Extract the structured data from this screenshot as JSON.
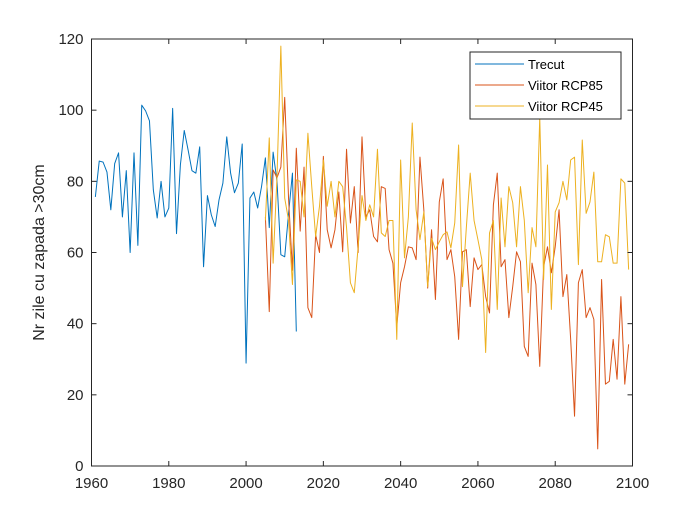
{
  "chart_data": {
    "type": "line",
    "title": "",
    "xlabel": "",
    "ylabel": "Nr zile cu zapada >30cm",
    "xlim": [
      1960,
      2100
    ],
    "ylim": [
      0,
      120
    ],
    "xticks": [
      1960,
      1980,
      2000,
      2020,
      2040,
      2060,
      2080,
      2100
    ],
    "yticks": [
      0,
      20,
      40,
      60,
      80,
      100,
      120
    ],
    "xtick_labels": [
      "1960",
      "1980",
      "2000",
      "2020",
      "2040",
      "2060",
      "2080",
      "2100"
    ],
    "ytick_labels": [
      "0",
      "20",
      "40",
      "60",
      "80",
      "100",
      "120"
    ],
    "grid": false,
    "legend_position": "top-right",
    "series": [
      {
        "name": "Trecut",
        "color": "#0072BD",
        "x_start": 1961,
        "values": [
          75.6,
          85.7,
          85.4,
          82.6,
          72,
          85,
          88,
          70,
          83,
          60,
          88,
          62,
          101.4,
          99.8,
          97,
          77.6,
          69.7,
          80,
          70,
          72.5,
          100.5,
          65.3,
          84.6,
          94.3,
          88.8,
          83,
          82.3,
          89.7,
          56,
          76,
          70.6,
          67.3,
          74.8,
          79.5,
          92.5,
          82.3,
          76.8,
          79.5,
          90.5,
          28.9,
          75.3,
          77,
          72.5,
          78.5,
          86.6,
          67,
          88.2,
          80,
          59.4,
          58.8,
          71,
          82.3,
          37.8
        ]
      },
      {
        "name": "Viitor RCP85",
        "color": "#D95319",
        "x_start": 2005,
        "values": [
          70,
          43.4,
          83.2,
          81,
          84,
          103.6,
          75,
          55,
          89.3,
          66,
          84,
          44.5,
          41.7,
          65,
          60,
          87,
          66.4,
          61.3,
          66.4,
          77,
          60.2,
          89,
          68.3,
          78.5,
          60,
          92.5,
          70,
          72,
          64.5,
          63,
          78.5,
          78,
          60.8,
          57,
          39.2,
          51.5,
          56,
          61.6,
          61.3,
          58,
          86.8,
          72,
          50,
          66.4,
          46.8,
          74.2,
          80.7,
          58,
          60.8,
          53.2,
          35.6,
          60.2,
          60.8,
          44.8,
          58.5,
          55.2,
          56.6,
          47.6,
          43,
          73.4,
          82.3,
          56,
          58,
          41.7,
          50.4,
          60.2,
          57.4,
          33.6,
          30.8,
          57,
          51,
          28,
          56,
          61.6,
          54.3,
          61.6,
          72,
          47.6,
          53.8,
          35.6,
          14,
          51.5,
          55.2,
          41.7,
          44.5,
          41.2,
          4.8,
          52.4,
          23,
          23.8,
          35.6,
          24.4,
          47.6,
          23,
          34.2
        ]
      },
      {
        "name": "Viitor RCP45",
        "color": "#EDB120",
        "x_start": 2005,
        "values": [
          69,
          92.2,
          57,
          81.2,
          118,
          75.3,
          69,
          51,
          80.4,
          80,
          70,
          93.5,
          78.5,
          64.5,
          73,
          86,
          73,
          80,
          70,
          80,
          78.5,
          67,
          51.5,
          48.7,
          61.6,
          76,
          69,
          73.4,
          70,
          89,
          65.5,
          64.5,
          69,
          69,
          35.6,
          86,
          58.5,
          70,
          96.4,
          72,
          63.6,
          71.4,
          50.4,
          64,
          60.8,
          63,
          65,
          65.8,
          61.3,
          68.3,
          90.2,
          50.4,
          67,
          82.3,
          69,
          63.6,
          58,
          31.9,
          65.5,
          69,
          44,
          75.3,
          61.6,
          78.5,
          74,
          61.6,
          78.5,
          69,
          48.7,
          67,
          61.6,
          98,
          52.4,
          84.6,
          44,
          71.4,
          74,
          80,
          74.8,
          86,
          86.8,
          56.6,
          91.6,
          71,
          74.2,
          82.6,
          57.4,
          57.4,
          65,
          64.4,
          57,
          57,
          80.7,
          79.5,
          55.2
        ]
      }
    ]
  }
}
